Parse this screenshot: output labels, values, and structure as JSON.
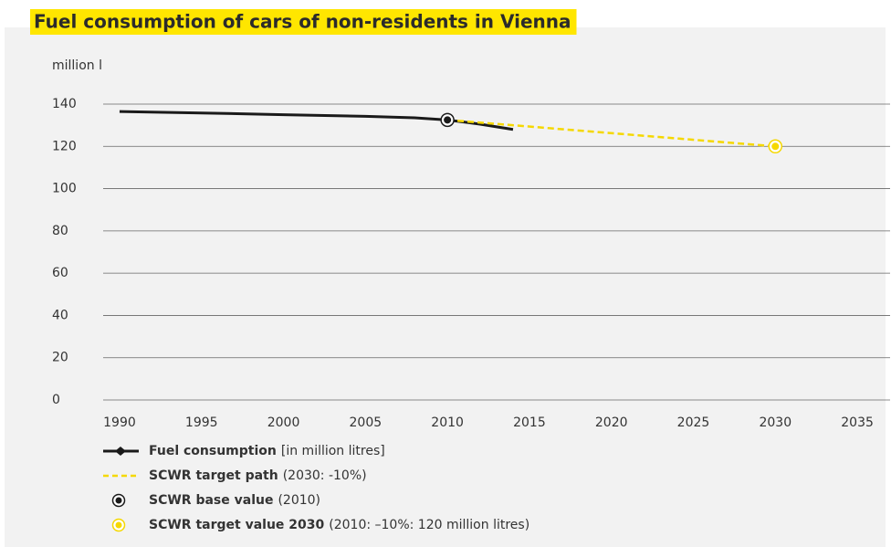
{
  "chart_data": {
    "type": "line",
    "title": "Fuel consumption of cars of non-residents in Vienna",
    "y_label": "million l",
    "xlim": [
      1989,
      2037
    ],
    "xticks": [
      1990,
      1995,
      2000,
      2005,
      2010,
      2015,
      2020,
      2025,
      2030,
      2035
    ],
    "ylim": [
      0,
      140
    ],
    "yticks": [
      0,
      20,
      40,
      60,
      80,
      100,
      120,
      140
    ],
    "grid": true,
    "series": [
      {
        "name": "Fuel consumption",
        "detail": "[in million litres]",
        "color": "#1a1a1a",
        "style": "line",
        "x": [
          1990,
          1995,
          2000,
          2005,
          2008,
          2010,
          2012,
          2014
        ],
        "values": [
          136.5,
          135.8,
          135,
          134.2,
          133.5,
          132.5,
          130.5,
          128
        ]
      },
      {
        "name": "SCWR target path",
        "detail": "(2030: -10%)",
        "color": "#f5d800",
        "style": "dashed",
        "x": [
          2010,
          2030
        ],
        "values": [
          132.5,
          120
        ]
      },
      {
        "name": "SCWR base value",
        "detail": "(2010)",
        "color": "#1a1a1a",
        "style": "point",
        "x": [
          2010
        ],
        "values": [
          132.5
        ]
      },
      {
        "name": "SCWR target value 2030",
        "detail": "(2010: –10%: 120 million litres)",
        "color": "#f5d800",
        "style": "point",
        "x": [
          2030
        ],
        "values": [
          120
        ]
      }
    ]
  }
}
